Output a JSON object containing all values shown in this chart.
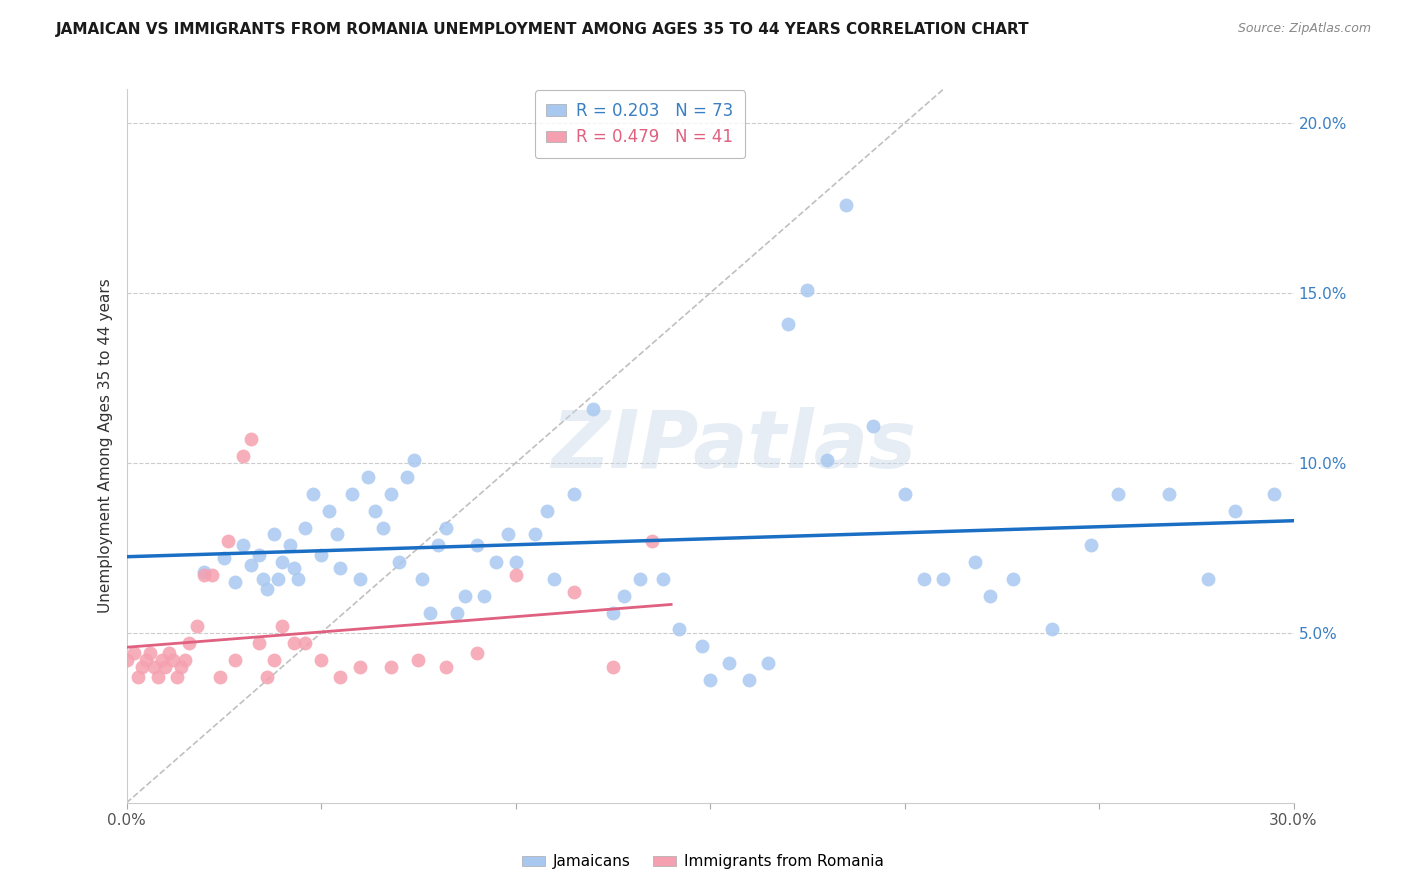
{
  "title": "JAMAICAN VS IMMIGRANTS FROM ROMANIA UNEMPLOYMENT AMONG AGES 35 TO 44 YEARS CORRELATION CHART",
  "source": "Source: ZipAtlas.com",
  "ylabel": "Unemployment Among Ages 35 to 44 years",
  "xlim": [
    0.0,
    0.3
  ],
  "ylim": [
    0.0,
    0.21
  ],
  "xtick_positions": [
    0.0,
    0.05,
    0.1,
    0.15,
    0.2,
    0.25,
    0.3
  ],
  "xtick_labels": [
    "0.0%",
    "",
    "",
    "",
    "",
    "",
    "30.0%"
  ],
  "yticks_right": [
    0.05,
    0.1,
    0.15,
    0.2
  ],
  "ytick_labels_right": [
    "5.0%",
    "10.0%",
    "15.0%",
    "20.0%"
  ],
  "jamaican_color": "#a8c8f0",
  "romanian_color": "#f5a0b0",
  "jamaican_line_color": "#1a6fc4",
  "romanian_line_color": "#e06080",
  "diagonal_color": "#c0c0c0",
  "legend_blue_label": "R = 0.203   N = 73",
  "legend_pink_label": "R = 0.479   N = 41",
  "watermark": "ZIPatlas",
  "bottom_label_1": "Jamaicans",
  "bottom_label_2": "Immigrants from Romania",
  "jamaican_x": [
    0.02,
    0.025,
    0.028,
    0.03,
    0.032,
    0.034,
    0.035,
    0.036,
    0.038,
    0.039,
    0.04,
    0.042,
    0.043,
    0.044,
    0.046,
    0.048,
    0.05,
    0.052,
    0.054,
    0.055,
    0.058,
    0.06,
    0.062,
    0.064,
    0.066,
    0.068,
    0.07,
    0.072,
    0.074,
    0.076,
    0.078,
    0.08,
    0.082,
    0.085,
    0.087,
    0.09,
    0.092,
    0.095,
    0.098,
    0.1,
    0.105,
    0.108,
    0.11,
    0.115,
    0.12,
    0.125,
    0.128,
    0.132,
    0.138,
    0.142,
    0.148,
    0.15,
    0.155,
    0.16,
    0.165,
    0.17,
    0.175,
    0.18,
    0.185,
    0.192,
    0.2,
    0.205,
    0.21,
    0.218,
    0.222,
    0.228,
    0.238,
    0.248,
    0.255,
    0.268,
    0.278,
    0.285,
    0.295
  ],
  "jamaican_y": [
    0.068,
    0.072,
    0.065,
    0.076,
    0.07,
    0.073,
    0.066,
    0.063,
    0.079,
    0.066,
    0.071,
    0.076,
    0.069,
    0.066,
    0.081,
    0.091,
    0.073,
    0.086,
    0.079,
    0.069,
    0.091,
    0.066,
    0.096,
    0.086,
    0.081,
    0.091,
    0.071,
    0.096,
    0.101,
    0.066,
    0.056,
    0.076,
    0.081,
    0.056,
    0.061,
    0.076,
    0.061,
    0.071,
    0.079,
    0.071,
    0.079,
    0.086,
    0.066,
    0.091,
    0.116,
    0.056,
    0.061,
    0.066,
    0.066,
    0.051,
    0.046,
    0.036,
    0.041,
    0.036,
    0.041,
    0.141,
    0.151,
    0.101,
    0.176,
    0.111,
    0.091,
    0.066,
    0.066,
    0.071,
    0.061,
    0.066,
    0.051,
    0.076,
    0.091,
    0.091,
    0.066,
    0.086,
    0.091
  ],
  "romanian_x": [
    0.0,
    0.002,
    0.003,
    0.004,
    0.005,
    0.006,
    0.007,
    0.008,
    0.009,
    0.01,
    0.011,
    0.012,
    0.013,
    0.014,
    0.015,
    0.016,
    0.018,
    0.02,
    0.022,
    0.024,
    0.026,
    0.028,
    0.03,
    0.032,
    0.034,
    0.036,
    0.038,
    0.04,
    0.043,
    0.046,
    0.05,
    0.055,
    0.06,
    0.068,
    0.075,
    0.082,
    0.09,
    0.1,
    0.115,
    0.125,
    0.135
  ],
  "romanian_y": [
    0.042,
    0.044,
    0.037,
    0.04,
    0.042,
    0.044,
    0.04,
    0.037,
    0.042,
    0.04,
    0.044,
    0.042,
    0.037,
    0.04,
    0.042,
    0.047,
    0.052,
    0.067,
    0.067,
    0.037,
    0.077,
    0.042,
    0.102,
    0.107,
    0.047,
    0.037,
    0.042,
    0.052,
    0.047,
    0.047,
    0.042,
    0.037,
    0.04,
    0.04,
    0.042,
    0.04,
    0.044,
    0.067,
    0.062,
    0.04,
    0.077
  ]
}
